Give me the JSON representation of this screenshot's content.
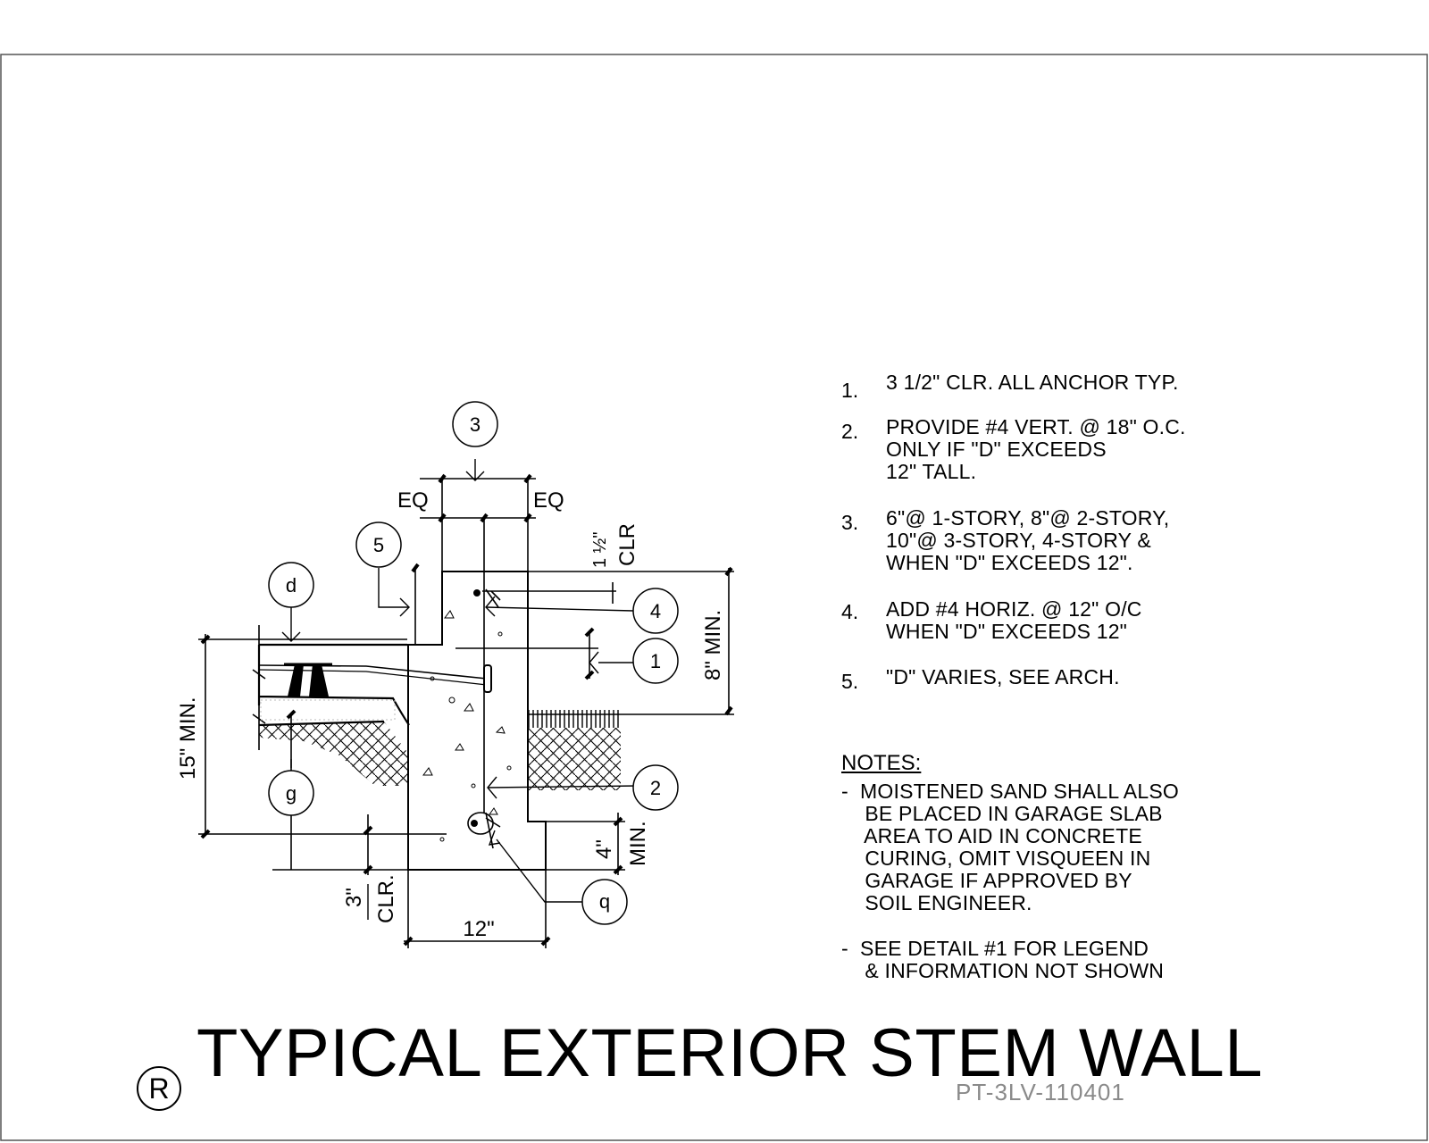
{
  "callouts": {
    "c3": "3",
    "c5": "5",
    "cd": "d",
    "c4": "4",
    "c1": "1",
    "cg": "g",
    "c2": "2",
    "cq": "q"
  },
  "dimensions": {
    "eq_left": "EQ",
    "eq_right": "EQ",
    "clr_top_value": "1 ½\"",
    "clr_top_label": "CLR",
    "height_8": "8\" MIN.",
    "height_15": "15\" MIN.",
    "bottom_4_value": "4\"",
    "bottom_4_label": "MIN.",
    "bottom_clr_value": "3\"",
    "bottom_clr_label": "CLR.",
    "width_12": "12\""
  },
  "numbered_notes": [
    {
      "num": "1.",
      "lines": [
        "3 1/2\" CLR. ALL ANCHOR TYP."
      ]
    },
    {
      "num": "2.",
      "lines": [
        "PROVIDE #4 VERT. @ 18\" O.C.",
        "ONLY IF \"D\" EXCEEDS",
        "12\" TALL."
      ]
    },
    {
      "num": "3.",
      "lines": [
        "6\"@ 1-STORY, 8\"@ 2-STORY,",
        "10\"@ 3-STORY, 4-STORY &",
        "WHEN \"D\" EXCEEDS 12\"."
      ]
    },
    {
      "num": "4.",
      "lines": [
        "ADD #4 HORIZ. @ 12\" O/C",
        "WHEN \"D\" EXCEEDS 12\""
      ]
    },
    {
      "num": "5.",
      "lines": [
        "\"D\" VARIES, SEE ARCH."
      ]
    }
  ],
  "notes_heading": "NOTES:",
  "general_notes": [
    [
      "-  MOISTENED SAND SHALL ALSO",
      "    BE PLACED IN GARAGE SLAB",
      "    AREA TO AID IN CONCRETE",
      "    CURING, OMIT VISQUEEN IN",
      "    GARAGE IF APPROVED BY",
      "    SOIL ENGINEER."
    ],
    [
      "-  SEE DETAIL #1 FOR LEGEND",
      "    & INFORMATION NOT SHOWN"
    ]
  ],
  "title": "TYPICAL EXTERIOR STEM WALL",
  "detail_marker": "R",
  "drawing_code": "PT-3LV-110401"
}
